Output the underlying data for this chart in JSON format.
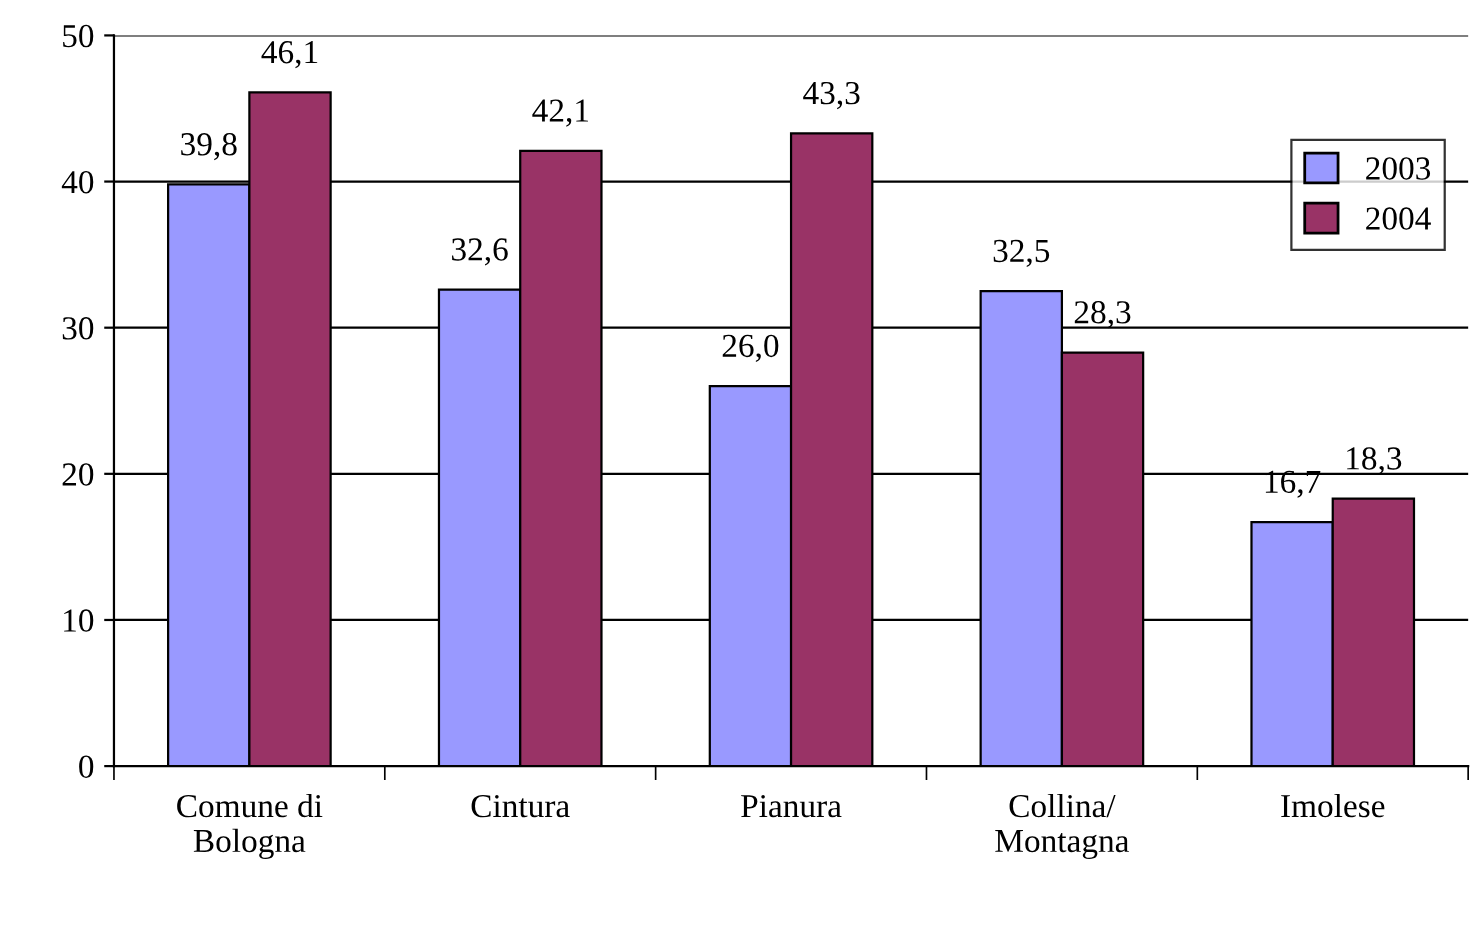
{
  "chart_data": {
    "type": "bar",
    "categories": [
      "Comune di\nBologna",
      "Cintura",
      "Pianura",
      "Collina/\nMontagna",
      "Imolese"
    ],
    "series": [
      {
        "name": "2003",
        "color": "#9999ff",
        "values": [
          39.8,
          32.6,
          26.0,
          32.5,
          16.7
        ],
        "value_labels": [
          "39,8",
          "32,6",
          "26,0",
          "32,5",
          "16,7"
        ]
      },
      {
        "name": "2004",
        "color": "#993366",
        "values": [
          46.1,
          42.1,
          43.3,
          28.3,
          18.3
        ],
        "value_labels": [
          "46,1",
          "42,1",
          "43,3",
          "28,3",
          "18,3"
        ]
      }
    ],
    "ylim": [
      0,
      50
    ],
    "yticks": [
      0,
      10,
      20,
      30,
      40,
      50
    ],
    "grid": "y",
    "legend": "top right"
  }
}
